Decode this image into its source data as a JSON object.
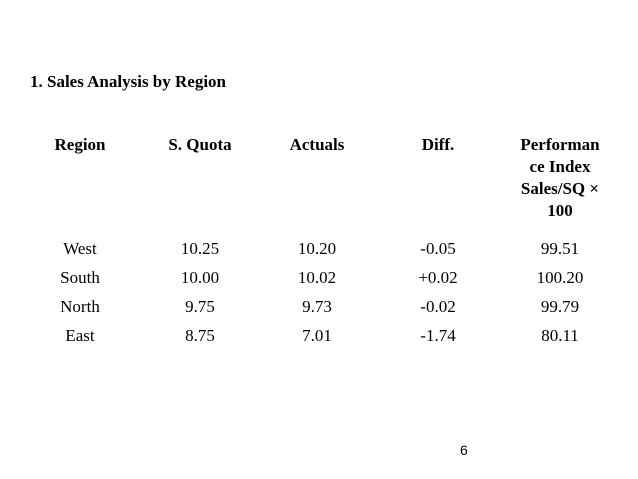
{
  "title": "1. Sales Analysis by Region",
  "table": {
    "headers": {
      "region": "Region",
      "quota": "S. Quota",
      "actuals": "Actuals",
      "diff": "Diff.",
      "performance_lines": [
        "Performan",
        "ce Index",
        "Sales/SQ ×",
        "100"
      ]
    },
    "rows": [
      {
        "region": "West",
        "quota": "10.25",
        "actuals": "10.20",
        "diff": "-0.05",
        "index": "99.51"
      },
      {
        "region": "South",
        "quota": "10.00",
        "actuals": "10.02",
        "diff": "+0.02",
        "index": "100.20"
      },
      {
        "region": "North",
        "quota": "9.75",
        "actuals": "9.73",
        "diff": "-0.02",
        "index": "99.79"
      },
      {
        "region": "East",
        "quota": "8.75",
        "actuals": "7.01",
        "diff": "-1.74",
        "index": "80.11"
      }
    ]
  },
  "page_number": "6"
}
